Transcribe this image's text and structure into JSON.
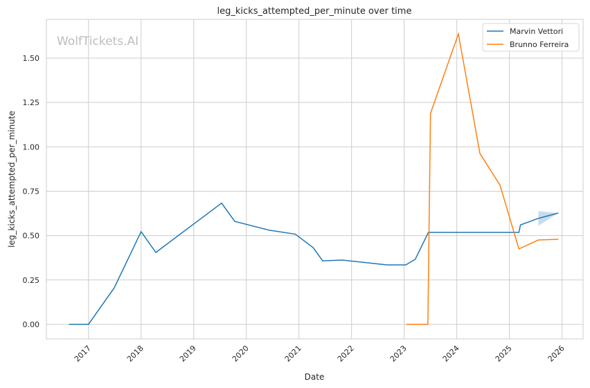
{
  "chart_data": {
    "type": "line",
    "title": "leg_kicks_attempted_per_minute over time",
    "xlabel": "Date",
    "ylabel": "leg_kicks_attempted_per_minute",
    "watermark": "WolfTickets.AI",
    "xlim": [
      2016.2,
      2026.4
    ],
    "ylim": [
      -0.082,
      1.718
    ],
    "xticks": [
      "2017",
      "2018",
      "2019",
      "2020",
      "2021",
      "2022",
      "2023",
      "2024",
      "2025",
      "2026"
    ],
    "yticks": [
      "0.00",
      "0.25",
      "0.50",
      "0.75",
      "1.00",
      "1.25",
      "1.50"
    ],
    "grid": true,
    "legend_position": "top-right",
    "series": [
      {
        "name": "Marvin Vettori",
        "color": "#1f77b4",
        "x": [
          2016.63,
          2017.0,
          2017.49,
          2018.0,
          2018.28,
          2019.53,
          2019.78,
          2020.44,
          2020.93,
          2021.27,
          2021.45,
          2021.82,
          2022.67,
          2023.03,
          2023.21,
          2023.46,
          2025.18,
          2025.21,
          2025.55,
          2025.93
        ],
        "y": [
          0,
          0,
          0.206,
          0.522,
          0.405,
          0.683,
          0.58,
          0.53,
          0.508,
          0.432,
          0.358,
          0.362,
          0.335,
          0.335,
          0.366,
          0.518,
          0.518,
          0.56,
          0.597,
          0.627
        ],
        "band": {
          "x": [
            2025.55,
            2025.93
          ],
          "lower": [
            0.555,
            0.627
          ],
          "upper": [
            0.638,
            0.627
          ]
        }
      },
      {
        "name": "Brunno Ferreira",
        "color": "#ff7f0e",
        "x": [
          2023.04,
          2023.45,
          2023.5,
          2024.03,
          2024.44,
          2024.82,
          2025.18,
          2025.55,
          2025.93
        ],
        "y": [
          0,
          0,
          1.188,
          1.636,
          0.962,
          0.785,
          0.425,
          0.475,
          0.479
        ]
      }
    ]
  }
}
